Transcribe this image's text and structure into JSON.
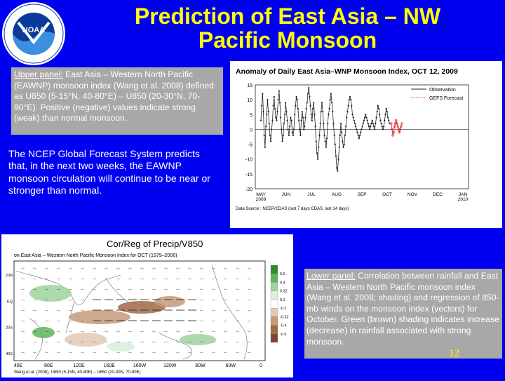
{
  "colors": {
    "background": "#0000f0",
    "title": "#ffff00",
    "caption_box": "#a8a8a8",
    "observation": "#222222",
    "forecast": "#e03030"
  },
  "logo": {
    "icon": "noaa-logo",
    "center_text": "NOAA",
    "ring_text": "NATIONAL OCEANIC AND ATMOSPHERIC ADMINISTRATION · U.S. DEPARTMENT OF COMMERCE"
  },
  "title": {
    "line1": "Prediction of East Asia – NW",
    "line2": "Pacific Monsoon"
  },
  "upper_caption": {
    "label": "Upper panel:",
    "text": " East Asia – Western North Pacific (EAWNP) monsoon index (Wang et al. 2008) defined as U850 (5-15°N, 40-80°E) – U850 (20-30°N, 70-90°E). Positive (negative) values indicate strong (weak) than normal monsoon."
  },
  "forecast_text": "The NCEP Global Forecast System predicts that, in the next two weeks, the EAWNP monsoon circulation will continue to be near or stronger than normal.",
  "lower_caption": {
    "label": "Lower panel:",
    "text": " Correlation between rainfall and East Asia – Western North Pacific monsoon index (Wang et al. 2008; shading) and regression of 850-mb winds on the monsoon index (vectors) for October. Green (brown) shading indicates increase (decrease) in rainfall associated with strong monsoon."
  },
  "slide_number": "12",
  "chart_data": [
    {
      "type": "line",
      "title": "Anomaly of Daily East Asia–WNP Monsoon Index, OCT 12, 2009",
      "xlabel": "",
      "ylabel": "",
      "x_tick_labels": [
        "MAY 2009",
        "JUN",
        "JUL",
        "AUG",
        "SEP",
        "OCT",
        "NOV",
        "DEC",
        "JAN 2010"
      ],
      "ylim": [
        -20,
        15
      ],
      "y_ticks": [
        15,
        10,
        5,
        0,
        -5,
        -10,
        -15,
        -20
      ],
      "legend": [
        "Observation",
        "GEFS Forecast"
      ],
      "legend_position": "top-right",
      "source": "Data Source : NCEP/CDAS (last 7 days CDAS, last 14 days)",
      "series": [
        {
          "name": "Observation",
          "color": "#222222",
          "values": [
            3,
            8,
            12,
            6,
            -2,
            -6,
            1,
            5,
            10,
            6,
            2,
            -2,
            -4,
            0,
            3,
            8,
            11,
            7,
            4,
            3,
            6,
            10,
            13,
            9,
            4,
            0,
            -4,
            -2,
            2,
            5,
            9,
            6,
            3,
            0,
            -2,
            1,
            4,
            3,
            -1,
            -2,
            0,
            5,
            8,
            11,
            10,
            7,
            3,
            0,
            -2,
            3,
            6,
            4,
            0,
            1,
            4,
            7,
            9,
            12,
            14,
            11,
            8,
            5,
            3,
            7,
            9,
            5,
            1,
            -4,
            -8,
            -10,
            -6,
            -2,
            2,
            6,
            9,
            6,
            2,
            -2,
            -4,
            -6,
            -3,
            2,
            5,
            7,
            10,
            12,
            9,
            6,
            2,
            -2,
            -5,
            -9,
            -13,
            -14,
            -10,
            -6,
            -2,
            2,
            -1,
            -4,
            -6,
            -5,
            -2,
            1,
            4,
            6,
            8,
            10,
            11,
            10,
            8,
            5,
            4,
            3,
            2,
            1,
            0,
            -1,
            -2,
            -3,
            -2,
            -1,
            0,
            1,
            2,
            3,
            4,
            5,
            4,
            3,
            2,
            1,
            0,
            1,
            2,
            3,
            2,
            1,
            0,
            2,
            4,
            6,
            8,
            7,
            5,
            3,
            2,
            1,
            0,
            1,
            3,
            5,
            7,
            6,
            4,
            3,
            2
          ]
        },
        {
          "name": "GEFS Forecast",
          "color": "#e03030",
          "start_index": 158,
          "values": [
            2,
            0,
            -2,
            -1,
            1,
            2,
            3,
            2,
            1,
            0,
            -1,
            0,
            1,
            2
          ]
        }
      ]
    },
    {
      "type": "heatmap",
      "title": "Cor/Reg of Precip/V850",
      "subtitle": "on East Asia – Western North Pacific Monsoon Index for OCT (1979–2006)",
      "x_tick_labels": [
        "40E",
        "80E",
        "120E",
        "160E",
        "160W",
        "120W",
        "80W",
        "60W",
        "0"
      ],
      "y_tick_labels": [
        "20N",
        "EQ",
        "20S",
        "40S"
      ],
      "colorbar_ticks": [
        "0.6",
        "0.4",
        "0.32",
        "0.2",
        "-0.2",
        "-0.32",
        "-0.4",
        "-0.6"
      ],
      "colorbar_colors": [
        "#2e8b2e",
        "#5fb35f",
        "#9fd39f",
        "#d8efd8",
        "#ffffff",
        "#e2c9b6",
        "#c49a7a",
        "#a06a45",
        "#7a4a2a"
      ],
      "footnote": "Wang et al. (2008), U850 (5-15N, 40-80E) – U850 (20-30N, 70-90E)"
    }
  ]
}
